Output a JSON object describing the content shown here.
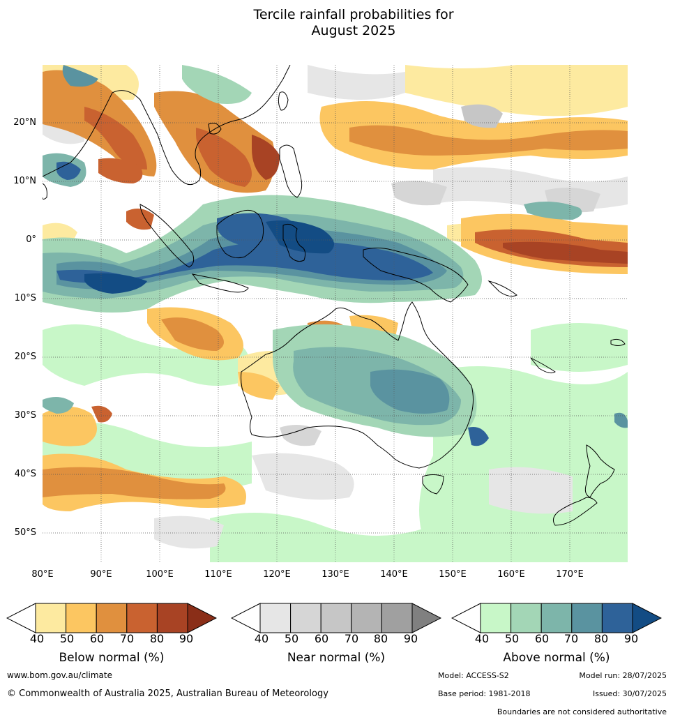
{
  "title_line1": "Tercile rainfall probabilities for",
  "title_line2": "August 2025",
  "lat_labels": [
    "20°N",
    "10°N",
    "0°",
    "10°S",
    "20°S",
    "30°S",
    "40°S",
    "50°S"
  ],
  "lon_labels": [
    "80°E",
    "90°E",
    "100°E",
    "110°E",
    "120°E",
    "130°E",
    "140°E",
    "150°E",
    "160°E",
    "170°E"
  ],
  "legends": {
    "below": {
      "title": "Below normal (%)",
      "ticks": [
        "40",
        "50",
        "60",
        "70",
        "80",
        "90"
      ],
      "colors": [
        "#ffffff",
        "#fdeaa0",
        "#fcc661",
        "#e0903e",
        "#c96230",
        "#a84324",
        "#8a2e18"
      ]
    },
    "near": {
      "title": "Near normal (%)",
      "ticks": [
        "40",
        "50",
        "60",
        "70",
        "80",
        "90"
      ],
      "colors": [
        "#ffffff",
        "#e6e6e6",
        "#d6d6d6",
        "#c6c6c6",
        "#b4b4b4",
        "#a0a0a0",
        "#808080"
      ]
    },
    "above": {
      "title": "Above normal (%)",
      "ticks": [
        "40",
        "50",
        "60",
        "70",
        "80",
        "90"
      ],
      "colors": [
        "#ffffff",
        "#c8f7c8",
        "#a3d6b6",
        "#7db5aa",
        "#5a93a0",
        "#2e6299",
        "#134c84"
      ]
    }
  },
  "footer": {
    "url": "www.bom.gov.au/climate",
    "copyright": "© Commonwealth of Australia 2025, Australian Bureau of Meteorology",
    "model": "Model: ACCESS-S2",
    "model_run": "Model run: 28/07/2025",
    "base_period": "Base period: 1981-2018",
    "issued": "Issued: 30/07/2025",
    "disclaimer": "Boundaries are not considered authoritative"
  }
}
